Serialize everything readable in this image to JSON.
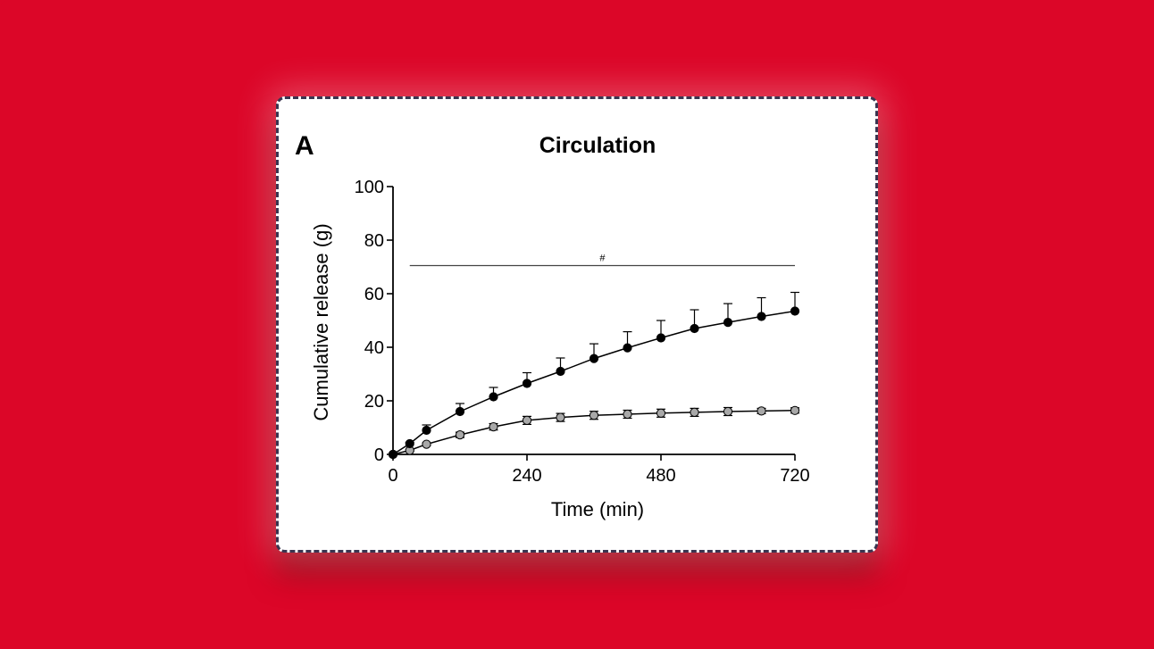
{
  "panel_label": "A",
  "chart_data": {
    "type": "line",
    "title": "Circulation",
    "xlabel": "Time (min)",
    "ylabel": "Cumulative release (g)",
    "xlim": [
      0,
      720
    ],
    "ylim": [
      0,
      100
    ],
    "xticks": [
      0,
      240,
      480,
      720
    ],
    "yticks": [
      0,
      20,
      40,
      60,
      80,
      100
    ],
    "grid": false,
    "legend": "none",
    "annotation": {
      "text": "#",
      "x_start": 30,
      "x_end": 720,
      "y": 70.5
    },
    "series": [
      {
        "marker_color": "#000000",
        "x": [
          0,
          30,
          60,
          120,
          180,
          240,
          300,
          360,
          420,
          480,
          540,
          600,
          660,
          720
        ],
        "y": [
          0,
          4,
          9,
          16,
          21.5,
          26.5,
          31,
          35.8,
          39.8,
          43.5,
          47,
          49.3,
          51.5,
          53.5
        ],
        "err": [
          0,
          0.5,
          2,
          3,
          3.5,
          4,
          5,
          5.5,
          6,
          6.5,
          7,
          7,
          7,
          7
        ]
      },
      {
        "marker_color": "#a8a8a8",
        "x": [
          0,
          30,
          60,
          120,
          180,
          240,
          300,
          360,
          420,
          480,
          540,
          600,
          660,
          720
        ],
        "y": [
          0,
          1.5,
          3.8,
          7.3,
          10.3,
          12.7,
          13.8,
          14.6,
          15,
          15.4,
          15.7,
          16,
          16.2,
          16.4
        ],
        "err": [
          0,
          0.3,
          0.5,
          1,
          1.2,
          1.5,
          1.5,
          1.5,
          1.5,
          1.5,
          1.5,
          1.5,
          1,
          1
        ]
      }
    ]
  }
}
